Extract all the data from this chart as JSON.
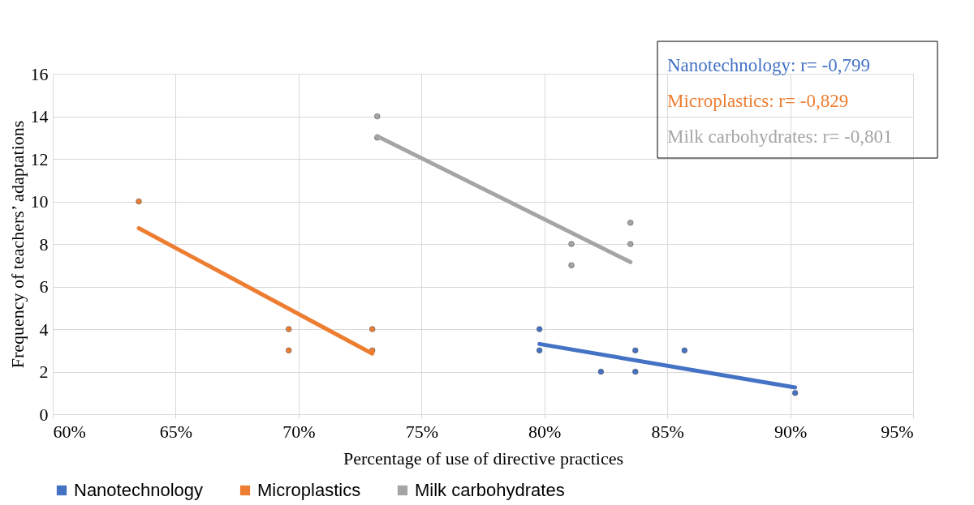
{
  "chart_data": {
    "type": "scatter",
    "xlabel": "Percentage of use of directive practices",
    "ylabel": "Frequency of teachers’ adaptations",
    "xlim": [
      60,
      95
    ],
    "xticks": [
      {
        "value": 60,
        "label": "60%"
      },
      {
        "value": 65,
        "label": "65%"
      },
      {
        "value": 70,
        "label": "70%"
      },
      {
        "value": 75,
        "label": "75%"
      },
      {
        "value": 80,
        "label": "80%"
      },
      {
        "value": 85,
        "label": "85%"
      },
      {
        "value": 90,
        "label": "90%"
      },
      {
        "value": 95,
        "label": "95%"
      }
    ],
    "ylim": [
      0,
      16
    ],
    "yticks": [
      0,
      2,
      4,
      6,
      8,
      10,
      12,
      14,
      16
    ],
    "grid": true,
    "legend": "bottom",
    "marker": "circle",
    "series": [
      {
        "name": "Nanotechnology",
        "color": "#4472c4",
        "x": [
          79.8,
          79.8,
          82.3,
          83.7,
          83.7,
          85.7,
          90.2
        ],
        "values": [
          4,
          3,
          2,
          3,
          2,
          3,
          1
        ]
      },
      {
        "name": "Microplastics",
        "color": "#ed7d31",
        "x": [
          63.5,
          69.6,
          69.6,
          73.0,
          73.0
        ],
        "values": [
          10,
          4,
          3,
          4,
          3
        ]
      },
      {
        "name": "Milk carbohydrates",
        "color": "#a5a5a5",
        "x": [
          73.2,
          73.2,
          81.1,
          81.1,
          83.5,
          83.5
        ],
        "values": [
          14,
          13,
          8,
          7,
          9,
          8
        ]
      },
      {
        "type": "line",
        "marker": "none",
        "color": "#4472c4",
        "x": [
          79.8,
          90.2
        ],
        "values": [
          3.3,
          1.26
        ]
      },
      {
        "type": "line",
        "marker": "none",
        "color": "#ed7d31",
        "x": [
          63.5,
          73.0
        ],
        "values": [
          8.74,
          2.85
        ]
      },
      {
        "type": "line",
        "marker": "none",
        "color": "#a5a5a5",
        "x": [
          73.2,
          83.5
        ],
        "values": [
          13.07,
          7.15
        ]
      }
    ],
    "annotations": [
      "Nanotechnology: r= -0,799",
      "Microplastics: r= -0,829",
      "Milk carbohydrates: r= -0,801"
    ]
  }
}
